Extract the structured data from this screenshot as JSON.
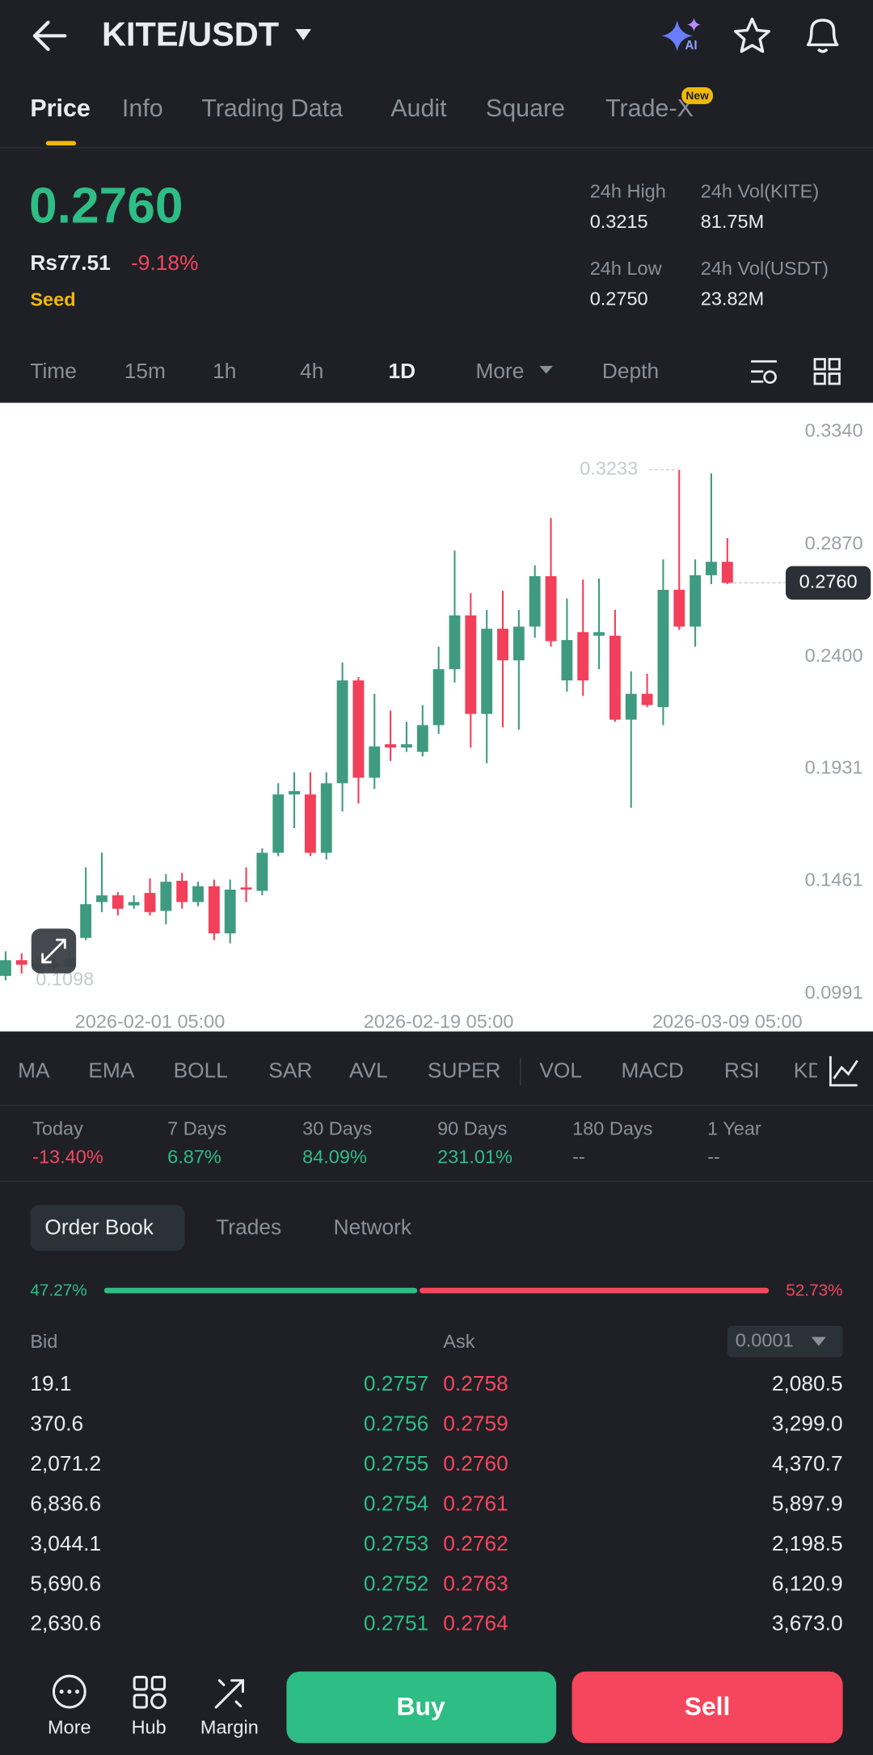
{
  "header": {
    "pair": "KITE/USDT",
    "ai_badge": "AI"
  },
  "tabs": {
    "items": [
      "Price",
      "Info",
      "Trading Data",
      "Audit",
      "Square",
      "Trade-X"
    ],
    "new_badge": "New"
  },
  "ticker": {
    "price": "0.2760",
    "fiat": "Rs77.51",
    "change": "-9.18%",
    "tag": "Seed",
    "stats": [
      {
        "label": "24h High",
        "value": "0.3215"
      },
      {
        "label": "24h Vol(KITE)",
        "value": "81.75M"
      },
      {
        "label": "24h Low",
        "value": "0.2750"
      },
      {
        "label": "24h Vol(USDT)",
        "value": "23.82M"
      }
    ]
  },
  "intervals": [
    "Time",
    "15m",
    "1h",
    "4h",
    "1D",
    "More",
    "Depth"
  ],
  "chart_data": {
    "type": "candlestick",
    "categories": [
      null,
      null,
      null,
      null,
      null,
      null,
      null,
      null,
      null,
      "2026-02-01 05:00",
      null,
      null,
      null,
      null,
      null,
      null,
      null,
      null,
      null,
      null,
      null,
      null,
      null,
      null,
      null,
      null,
      null,
      "2026-02-19 05:00",
      null,
      null,
      null,
      null,
      null,
      null,
      null,
      null,
      null,
      null,
      null,
      null,
      null,
      null,
      null,
      null,
      null,
      "2026-03-09 05:00"
    ],
    "open": [
      0.1116,
      0.1182,
      0.1144,
      0.1172,
      0.1154,
      0.1275,
      0.1425,
      0.1453,
      0.1411,
      0.1463,
      0.1388,
      0.1514,
      0.1425,
      0.1491,
      0.1294,
      0.1486,
      0.1472,
      0.1631,
      0.1875,
      0.1875,
      0.1631,
      0.1922,
      0.2352,
      0.1945,
      0.2085,
      0.2071,
      0.2053,
      0.2165,
      0.2399,
      0.2624,
      0.2212,
      0.2568,
      0.2436,
      0.2577,
      0.2788,
      0.2352,
      0.2554,
      0.2539,
      0.2539,
      0.2188,
      0.2296,
      0.224,
      0.2731,
      0.2577,
      0.2792,
      0.2848
    ],
    "close": [
      0.1182,
      0.1163,
      0.1172,
      0.1154,
      0.1191,
      0.1416,
      0.1453,
      0.1397,
      0.1425,
      0.1383,
      0.151,
      0.1425,
      0.1491,
      0.1294,
      0.1477,
      0.1477,
      0.1631,
      0.1875,
      0.1889,
      0.1631,
      0.1922,
      0.2352,
      0.1945,
      0.2076,
      0.2071,
      0.2085,
      0.2165,
      0.2399,
      0.2624,
      0.2212,
      0.2568,
      0.2436,
      0.2577,
      0.2788,
      0.2516,
      0.2521,
      0.2352,
      0.2554,
      0.2188,
      0.2296,
      0.2249,
      0.2731,
      0.2577,
      0.2792,
      0.2848,
      0.276
    ],
    "high": [
      0.1219,
      0.121,
      0.1196,
      0.1191,
      0.1219,
      0.157,
      0.1631,
      0.1467,
      0.1453,
      0.1524,
      0.1542,
      0.1547,
      0.151,
      0.1519,
      0.1519,
      0.157,
      0.165,
      0.1922,
      0.1968,
      0.1968,
      0.1968,
      0.2427,
      0.2366,
      0.2296,
      0.2226,
      0.2179,
      0.2249,
      0.2493,
      0.2895,
      0.2717,
      0.2647,
      0.2727,
      0.2647,
      0.2834,
      0.3031,
      0.2694,
      0.2774,
      0.2778,
      0.2647,
      0.239,
      0.238,
      0.2858,
      0.3233,
      0.2858,
      0.3218,
      0.2947
    ],
    "low": [
      0.1098,
      0.1126,
      0.1135,
      0.114,
      0.1144,
      0.1266,
      0.1383,
      0.1369,
      0.1397,
      0.1369,
      0.1332,
      0.1397,
      0.1407,
      0.1266,
      0.1252,
      0.1425,
      0.1453,
      0.1617,
      0.1734,
      0.1617,
      0.1603,
      0.1804,
      0.1837,
      0.1898,
      0.2015,
      0.2053,
      0.2034,
      0.2128,
      0.2343,
      0.2071,
      0.2006,
      0.2156,
      0.2146,
      0.253,
      0.2493,
      0.2305,
      0.2287,
      0.2399,
      0.2179,
      0.1819,
      0.224,
      0.2165,
      0.2563,
      0.2493,
      0.2755,
      0.2755
    ],
    "ylim": [
      0.0991,
      0.334
    ],
    "yticks": [
      {
        "value": 0.334,
        "label": "0.3340"
      },
      {
        "value": 0.287,
        "label": "0.2870"
      },
      {
        "value": 0.24,
        "label": "0.2400"
      },
      0.1931,
      0.1461,
      0.0991
    ],
    "grid": false,
    "last_price": {
      "value": 0.276,
      "label": "0.2760"
    },
    "high_label": 0.3233,
    "low_label": 0.1098,
    "up_color": "#3f9b7f",
    "down_color": "#f23f5a"
  },
  "indicators": [
    "MA",
    "EMA",
    "BOLL",
    "SAR",
    "AVL",
    "SUPER",
    "VOL",
    "MACD",
    "RSI",
    "KD"
  ],
  "performance": [
    {
      "label": "Today",
      "value": "-13.40%"
    },
    {
      "label": "7 Days",
      "value": "6.87%"
    },
    {
      "label": "30 Days",
      "value": "84.09%"
    },
    {
      "label": "90 Days",
      "value": "231.01%"
    },
    {
      "label": "180 Days",
      "value": "--"
    },
    {
      "label": "1 Year",
      "value": "--"
    }
  ],
  "order_book": {
    "tabs": [
      "Order Book",
      "Trades",
      "Network"
    ],
    "ratio": {
      "values": [
        47.27,
        52.73
      ],
      "value_labels": [
        "47.27%",
        "52.73%"
      ],
      "colors": [
        "#2ebd85",
        "#f6465d"
      ]
    },
    "bid_header": "Bid",
    "ask_header": "Ask",
    "precision": "0.0001",
    "rows": [
      [
        "19.1",
        "0.2757",
        "0.2758",
        "2,080.5"
      ],
      [
        "370.6",
        "0.2756",
        "0.2759",
        "3,299.0"
      ],
      [
        "2,071.2",
        "0.2755",
        "0.2760",
        "4,370.7"
      ],
      [
        "6,836.6",
        "0.2754",
        "0.2761",
        "5,897.9"
      ],
      [
        "3,044.1",
        "0.2753",
        "0.2762",
        "2,198.5"
      ],
      [
        "5,690.6",
        "0.2752",
        "0.2763",
        "6,120.9"
      ],
      [
        "2,630.6",
        "0.2751",
        "0.2764",
        "3,673.0"
      ]
    ]
  },
  "bottom": {
    "nav": [
      "More",
      "Hub",
      "Margin"
    ],
    "buy": "Buy",
    "sell": "Sell"
  }
}
